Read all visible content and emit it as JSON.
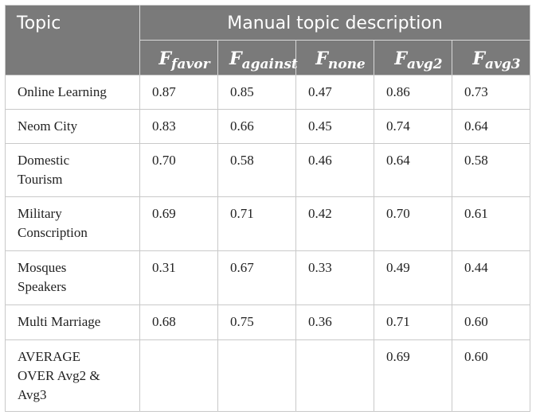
{
  "header": {
    "topic_label": "Topic",
    "span_label": "Manual topic description"
  },
  "metrics": [
    {
      "base": "F",
      "sub": "favor"
    },
    {
      "base": "F",
      "sub": "against"
    },
    {
      "base": "F",
      "sub": "none"
    },
    {
      "base": "F",
      "sub": "avg2"
    },
    {
      "base": "F",
      "sub": "avg3"
    }
  ],
  "rows": [
    {
      "topic_lines": [
        "Online Learning"
      ],
      "values": [
        "0.87",
        "0.85",
        "0.47",
        "0.86",
        "0.73"
      ]
    },
    {
      "topic_lines": [
        "Neom City"
      ],
      "values": [
        "0.83",
        "0.66",
        "0.45",
        "0.74",
        "0.64"
      ]
    },
    {
      "topic_lines": [
        "Domestic",
        "Tourism"
      ],
      "values": [
        "0.70",
        "0.58",
        "0.46",
        "0.64",
        "0.58"
      ]
    },
    {
      "topic_lines": [
        "Military",
        "Conscription"
      ],
      "values": [
        "0.69",
        "0.71",
        "0.42",
        "0.70",
        "0.61"
      ]
    },
    {
      "topic_lines": [
        "Mosques",
        "Speakers"
      ],
      "values": [
        "0.31",
        "0.67",
        "0.33",
        "0.49",
        "0.44"
      ]
    },
    {
      "topic_lines": [
        "Multi Marriage"
      ],
      "values": [
        "0.68",
        "0.75",
        "0.36",
        "0.71",
        "0.60"
      ]
    },
    {
      "topic_lines": [
        "AVERAGE",
        "OVER Avg2 &",
        "Avg3"
      ],
      "values": [
        "",
        "",
        "",
        "0.69",
        "0.60"
      ]
    }
  ]
}
